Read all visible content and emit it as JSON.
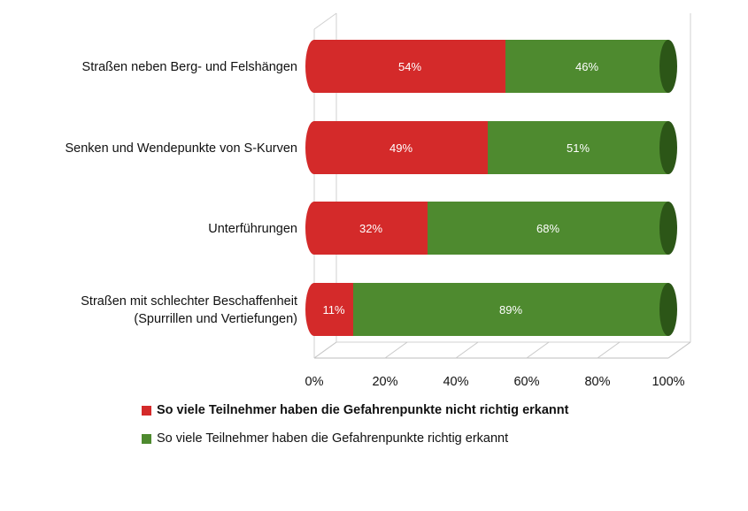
{
  "chart_data": {
    "type": "bar",
    "orientation": "horizontal",
    "stacked": true,
    "percent_stacked": true,
    "categories": [
      "Straßen neben Berg- und Felshängen",
      "Senken und Wendepunkte von S-Kurven",
      "Unterführungen",
      "Straßen mit schlechter Beschaffenheit (Spurrillen und Vertiefungen)"
    ],
    "category_lines": [
      [
        "Straßen neben Berg- und Felshängen"
      ],
      [
        "Senken und Wendepunkte von S-Kurven"
      ],
      [
        "Unterführungen"
      ],
      [
        "Straßen mit schlechter Beschaffenheit",
        "(Spurrillen und Vertiefungen)"
      ]
    ],
    "series": [
      {
        "name": "So viele Teilnehmer haben die Gefahrenpunkte nicht richtig erkannt",
        "color": "#d42a2a",
        "values": [
          54,
          49,
          32,
          11
        ],
        "labels": [
          "54%",
          "49%",
          "32%",
          "11%"
        ]
      },
      {
        "name": "So viele Teilnehmer haben die Gefahrenpunkte richtig erkannt",
        "color": "#4e8a2f",
        "values": [
          46,
          51,
          68,
          89
        ],
        "labels": [
          "46%",
          "51%",
          "68%",
          "89%"
        ]
      }
    ],
    "x_ticks": [
      "0%",
      "20%",
      "40%",
      "60%",
      "80%",
      "100%"
    ],
    "xlim": [
      0,
      100
    ],
    "grid": false,
    "legend_position": "bottom",
    "style": "3d-cylinder"
  }
}
